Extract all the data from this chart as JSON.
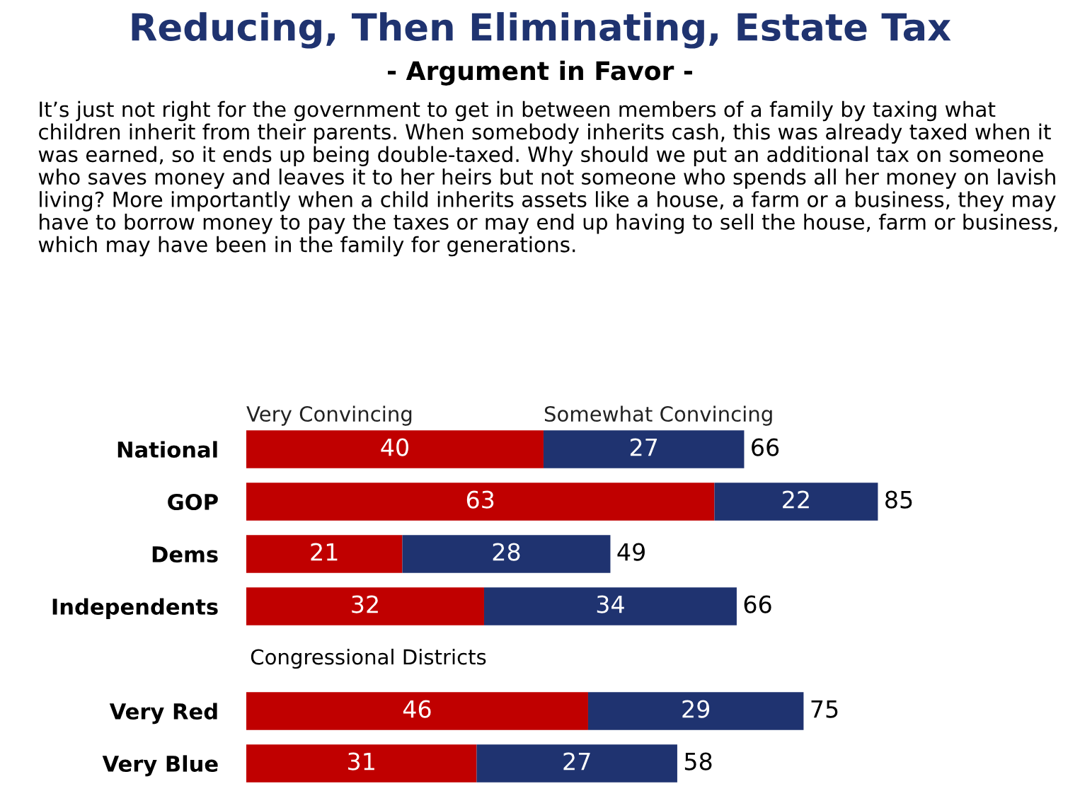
{
  "chart_data": {
    "type": "bar",
    "orientation": "horizontal",
    "stacked": true,
    "title": "Reducing, Then Eliminating, Estate Tax",
    "subtitle": "- Argument in Favor -",
    "annotations": [
      "It’s just not right for the government to get in between members of a family by taxing what children inherit from their parents. When somebody inherits cash, this was already taxed when it was earned, so it ends up being double-taxed. Why should we put an additional tax on someone who saves money and leaves it to her heirs but not someone who spends all her money on lavish living? More importantly when a child inherits assets like a house, a farm or a business, they may have to borrow money to pay the taxes or may end up having to sell the house, farm or business, which may have been in the family for generations.",
      "Congressional Districts"
    ],
    "categories": [
      "National",
      "GOP",
      "Dems",
      "Independents",
      null,
      "Very Red",
      "Very Blue"
    ],
    "series": [
      {
        "name": "Very Convincing",
        "color": "#c00000",
        "values": [
          40,
          63,
          21,
          32,
          null,
          46,
          31
        ]
      },
      {
        "name": "Somewhat Convincing",
        "color": "#1f3370",
        "values": [
          27,
          22,
          28,
          34,
          null,
          29,
          27
        ]
      }
    ],
    "totals": [
      "66",
      "85",
      "49",
      "66",
      null,
      "75",
      "58"
    ],
    "data_labels": true
  }
}
